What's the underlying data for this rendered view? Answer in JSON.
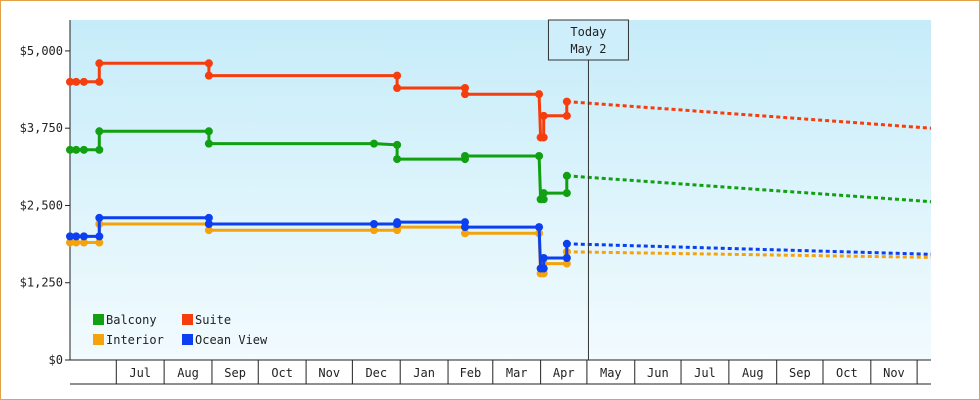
{
  "chart_data": {
    "type": "line",
    "title": "",
    "xlabel": "",
    "ylabel": "",
    "ylim": [
      0,
      5500
    ],
    "yticks": [
      0,
      1250,
      2500,
      3750,
      5000
    ],
    "ytick_labels": [
      "$0",
      "$1,250",
      "$2,500",
      "$3,750",
      "$5,000"
    ],
    "x_axis_type": "date",
    "xlim": [
      "2015-06-01",
      "2016-12-10"
    ],
    "month_labels": [
      {
        "label": "Jul",
        "start": "2015-07-01",
        "end": "2015-08-01"
      },
      {
        "label": "Aug",
        "start": "2015-08-01",
        "end": "2015-09-01"
      },
      {
        "label": "Sep",
        "start": "2015-09-01",
        "end": "2015-10-01"
      },
      {
        "label": "Oct",
        "start": "2015-10-01",
        "end": "2015-11-01"
      },
      {
        "label": "Nov",
        "start": "2015-11-01",
        "end": "2015-12-01"
      },
      {
        "label": "Dec",
        "start": "2015-12-01",
        "end": "2016-01-01"
      },
      {
        "label": "Jan",
        "start": "2016-01-01",
        "end": "2016-02-01"
      },
      {
        "label": "Feb",
        "start": "2016-02-01",
        "end": "2016-03-01"
      },
      {
        "label": "Mar",
        "start": "2016-03-01",
        "end": "2016-04-01"
      },
      {
        "label": "Apr",
        "start": "2016-04-01",
        "end": "2016-05-01"
      },
      {
        "label": "May",
        "start": "2016-05-01",
        "end": "2016-06-01"
      },
      {
        "label": "Jun",
        "start": "2016-06-01",
        "end": "2016-07-01"
      },
      {
        "label": "Jul",
        "start": "2016-07-01",
        "end": "2016-08-01"
      },
      {
        "label": "Aug",
        "start": "2016-08-01",
        "end": "2016-09-01"
      },
      {
        "label": "Sep",
        "start": "2016-09-01",
        "end": "2016-10-01"
      },
      {
        "label": "Oct",
        "start": "2016-10-01",
        "end": "2016-11-01"
      },
      {
        "label": "Nov",
        "start": "2016-11-01",
        "end": "2016-12-01"
      }
    ],
    "today": {
      "line1": "Today",
      "line2": "May 2",
      "date": "2016-05-02"
    },
    "grid": true,
    "legend_position": "bottom-left",
    "series": [
      {
        "name": "Balcony",
        "color": "#11a011",
        "history": [
          {
            "date": "2015-06-01",
            "value": 3400
          },
          {
            "date": "2015-06-05",
            "value": 3400
          },
          {
            "date": "2015-06-10",
            "value": 3400
          },
          {
            "date": "2015-06-20",
            "value": 3400
          },
          {
            "date": "2015-06-20",
            "value": 3700
          },
          {
            "date": "2015-08-30",
            "value": 3700
          },
          {
            "date": "2015-08-30",
            "value": 3500
          },
          {
            "date": "2015-12-15",
            "value": 3500
          },
          {
            "date": "2015-12-30",
            "value": 3480
          },
          {
            "date": "2015-12-30",
            "value": 3250
          },
          {
            "date": "2016-02-12",
            "value": 3250
          },
          {
            "date": "2016-02-12",
            "value": 3300
          },
          {
            "date": "2016-03-31",
            "value": 3300
          },
          {
            "date": "2016-04-01",
            "value": 2600
          },
          {
            "date": "2016-04-03",
            "value": 2600
          },
          {
            "date": "2016-04-03",
            "value": 2700
          },
          {
            "date": "2016-04-18",
            "value": 2700
          },
          {
            "date": "2016-04-18",
            "value": 2980
          }
        ],
        "forecast": [
          {
            "date": "2016-04-18",
            "value": 2980
          },
          {
            "date": "2016-12-10",
            "value": 2560
          }
        ]
      },
      {
        "name": "Suite",
        "color": "#f53d0d",
        "history": [
          {
            "date": "2015-06-01",
            "value": 4500
          },
          {
            "date": "2015-06-05",
            "value": 4500
          },
          {
            "date": "2015-06-10",
            "value": 4500
          },
          {
            "date": "2015-06-20",
            "value": 4500
          },
          {
            "date": "2015-06-20",
            "value": 4800
          },
          {
            "date": "2015-08-30",
            "value": 4800
          },
          {
            "date": "2015-08-30",
            "value": 4600
          },
          {
            "date": "2015-12-30",
            "value": 4600
          },
          {
            "date": "2015-12-30",
            "value": 4400
          },
          {
            "date": "2016-02-12",
            "value": 4400
          },
          {
            "date": "2016-02-12",
            "value": 4300
          },
          {
            "date": "2016-03-31",
            "value": 4300
          },
          {
            "date": "2016-04-01",
            "value": 3600
          },
          {
            "date": "2016-04-03",
            "value": 3600
          },
          {
            "date": "2016-04-03",
            "value": 3950
          },
          {
            "date": "2016-04-18",
            "value": 3950
          },
          {
            "date": "2016-04-18",
            "value": 4180
          }
        ],
        "forecast": [
          {
            "date": "2016-04-18",
            "value": 4180
          },
          {
            "date": "2016-12-10",
            "value": 3750
          }
        ]
      },
      {
        "name": "Interior",
        "color": "#f5a30d",
        "history": [
          {
            "date": "2015-06-01",
            "value": 1900
          },
          {
            "date": "2015-06-05",
            "value": 1900
          },
          {
            "date": "2015-06-10",
            "value": 1900
          },
          {
            "date": "2015-06-20",
            "value": 1900
          },
          {
            "date": "2015-06-20",
            "value": 2200
          },
          {
            "date": "2015-08-30",
            "value": 2200
          },
          {
            "date": "2015-08-30",
            "value": 2100
          },
          {
            "date": "2015-12-15",
            "value": 2100
          },
          {
            "date": "2015-12-30",
            "value": 2100
          },
          {
            "date": "2015-12-30",
            "value": 2150
          },
          {
            "date": "2016-02-12",
            "value": 2150
          },
          {
            "date": "2016-02-12",
            "value": 2050
          },
          {
            "date": "2016-03-31",
            "value": 2050
          },
          {
            "date": "2016-04-01",
            "value": 1400
          },
          {
            "date": "2016-04-03",
            "value": 1400
          },
          {
            "date": "2016-04-03",
            "value": 1560
          },
          {
            "date": "2016-04-18",
            "value": 1560
          },
          {
            "date": "2016-04-18",
            "value": 1750
          }
        ],
        "forecast": [
          {
            "date": "2016-04-18",
            "value": 1750
          },
          {
            "date": "2016-12-10",
            "value": 1660
          }
        ]
      },
      {
        "name": "Ocean View",
        "color": "#0b3ff0",
        "history": [
          {
            "date": "2015-06-01",
            "value": 2000
          },
          {
            "date": "2015-06-05",
            "value": 2000
          },
          {
            "date": "2015-06-10",
            "value": 2000
          },
          {
            "date": "2015-06-20",
            "value": 2000
          },
          {
            "date": "2015-06-20",
            "value": 2300
          },
          {
            "date": "2015-08-30",
            "value": 2300
          },
          {
            "date": "2015-08-30",
            "value": 2200
          },
          {
            "date": "2015-12-15",
            "value": 2200
          },
          {
            "date": "2015-12-30",
            "value": 2200
          },
          {
            "date": "2015-12-30",
            "value": 2230
          },
          {
            "date": "2016-02-12",
            "value": 2230
          },
          {
            "date": "2016-02-12",
            "value": 2150
          },
          {
            "date": "2016-03-31",
            "value": 2150
          },
          {
            "date": "2016-04-01",
            "value": 1480
          },
          {
            "date": "2016-04-03",
            "value": 1480
          },
          {
            "date": "2016-04-03",
            "value": 1650
          },
          {
            "date": "2016-04-18",
            "value": 1650
          },
          {
            "date": "2016-04-18",
            "value": 1880
          }
        ],
        "forecast": [
          {
            "date": "2016-04-18",
            "value": 1880
          },
          {
            "date": "2016-12-10",
            "value": 1710
          }
        ]
      }
    ]
  }
}
